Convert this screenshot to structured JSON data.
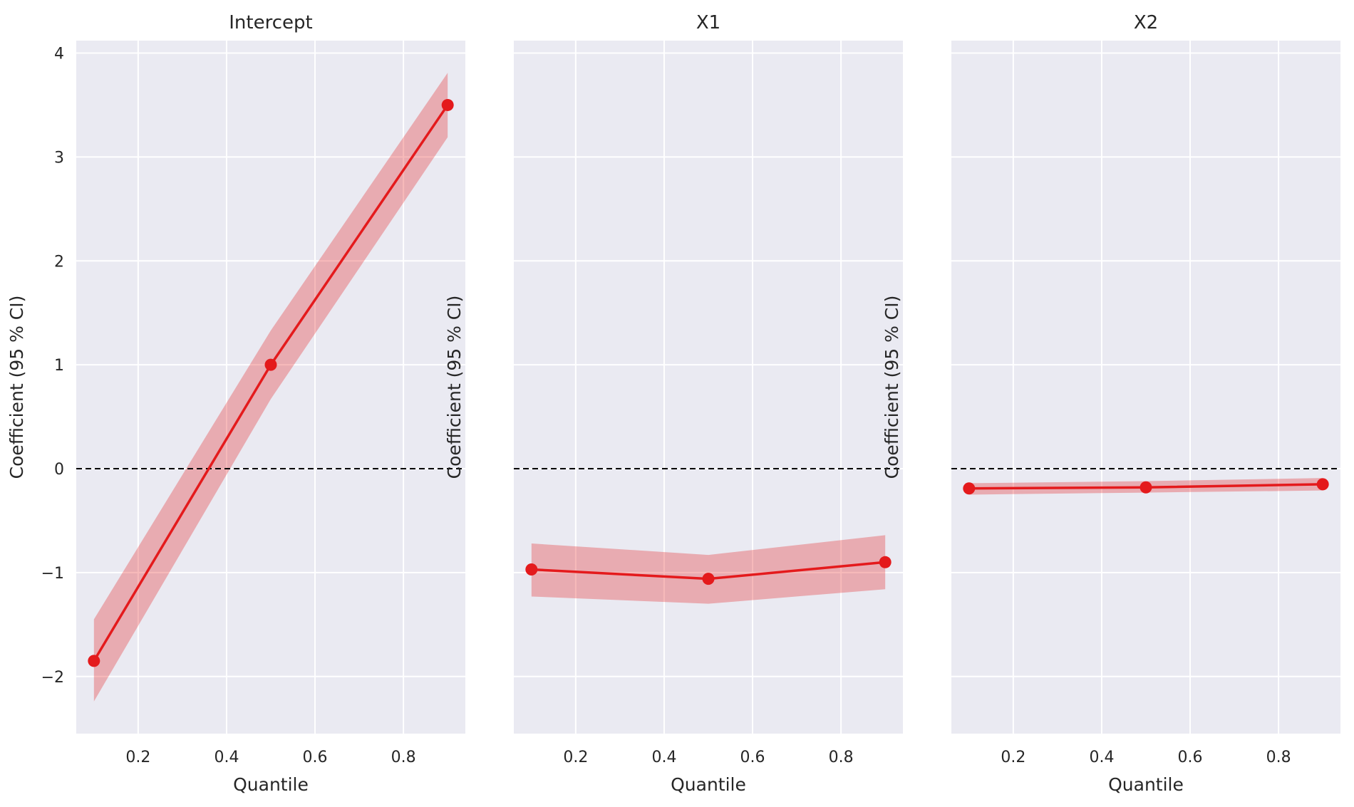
{
  "chart_data": [
    {
      "type": "line",
      "title": "Intercept",
      "xlabel": "Quantile",
      "ylabel": "Coefficient (95 % CI)",
      "show_ytick_labels": true,
      "x": [
        0.1,
        0.5,
        0.9
      ],
      "values": [
        -1.85,
        1.0,
        3.5
      ],
      "ci_lower": [
        -2.24,
        0.67,
        3.19
      ],
      "ci_upper": [
        -1.45,
        1.33,
        3.81
      ],
      "xlim": [
        0.06,
        0.94
      ],
      "ylim": [
        -2.55,
        4.12
      ],
      "xticks": [
        0.2,
        0.4,
        0.6,
        0.8
      ],
      "xtick_labels": [
        "0.2",
        "0.4",
        "0.6",
        "0.8"
      ],
      "yticks": [
        -2,
        -1,
        0,
        1,
        2,
        3,
        4
      ],
      "ytick_labels": [
        "−2",
        "−1",
        "0",
        "1",
        "2",
        "3",
        "4"
      ],
      "reference_line": 0,
      "grid": true
    },
    {
      "type": "line",
      "title": "X1",
      "xlabel": "Quantile",
      "ylabel": "Coefficient (95 % CI)",
      "show_ytick_labels": false,
      "x": [
        0.1,
        0.5,
        0.9
      ],
      "values": [
        -0.97,
        -1.06,
        -0.9
      ],
      "ci_lower": [
        -1.23,
        -1.3,
        -1.16
      ],
      "ci_upper": [
        -0.72,
        -0.83,
        -0.64
      ],
      "xlim": [
        0.06,
        0.94
      ],
      "ylim": [
        -2.55,
        4.12
      ],
      "xticks": [
        0.2,
        0.4,
        0.6,
        0.8
      ],
      "xtick_labels": [
        "0.2",
        "0.4",
        "0.6",
        "0.8"
      ],
      "yticks": [
        -2,
        -1,
        0,
        1,
        2,
        3,
        4
      ],
      "ytick_labels": [],
      "reference_line": 0,
      "grid": true
    },
    {
      "type": "line",
      "title": "X2",
      "xlabel": "Quantile",
      "ylabel": "Coefficient (95 % CI)",
      "show_ytick_labels": false,
      "x": [
        0.1,
        0.5,
        0.9
      ],
      "values": [
        -0.19,
        -0.18,
        -0.15
      ],
      "ci_lower": [
        -0.25,
        -0.23,
        -0.21
      ],
      "ci_upper": [
        -0.14,
        -0.12,
        -0.09
      ],
      "xlim": [
        0.06,
        0.94
      ],
      "ylim": [
        -2.55,
        4.12
      ],
      "xticks": [
        0.2,
        0.4,
        0.6,
        0.8
      ],
      "xtick_labels": [
        "0.2",
        "0.4",
        "0.6",
        "0.8"
      ],
      "yticks": [
        -2,
        -1,
        0,
        1,
        2,
        3,
        4
      ],
      "ytick_labels": [],
      "reference_line": 0,
      "grid": true
    }
  ],
  "style": {
    "line_color": "#e41a1c",
    "band_color": "#e41a1c",
    "plot_bg": "#eaeaf2",
    "grid_color": "#ffffff",
    "reference_color": "#000000",
    "text_color": "#262626"
  }
}
